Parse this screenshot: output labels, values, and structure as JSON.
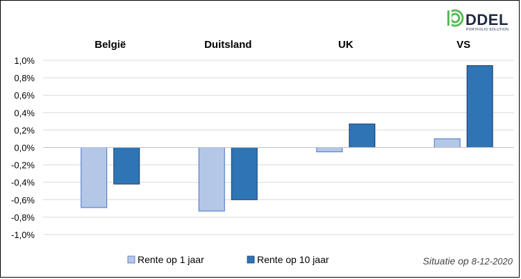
{
  "chart_data": {
    "type": "bar",
    "categories": [
      "België",
      "Duitsland",
      "UK",
      "VS"
    ],
    "series": [
      {
        "name": "Rente op 1 jaar",
        "color": "#b4c7e7",
        "values": [
          -0.0069,
          -0.0073,
          -0.0005,
          0.001
        ]
      },
      {
        "name": "Rente op 10 jaar",
        "color": "#2e75b6",
        "values": [
          -0.0042,
          -0.006,
          0.0027,
          0.0094
        ]
      }
    ],
    "ylim": [
      -0.01,
      0.01
    ],
    "yticks": [
      {
        "value": 0.01,
        "label": "1,0%"
      },
      {
        "value": 0.008,
        "label": "0,8%"
      },
      {
        "value": 0.006,
        "label": "0,6%"
      },
      {
        "value": 0.004,
        "label": "0,4%"
      },
      {
        "value": 0.002,
        "label": "0,2%"
      },
      {
        "value": 0.0,
        "label": "0,0%"
      },
      {
        "value": -0.002,
        "label": "-0,2%"
      },
      {
        "value": -0.004,
        "label": "-0,4%"
      },
      {
        "value": -0.006,
        "label": "-0,6%"
      },
      {
        "value": -0.008,
        "label": "-0,8%"
      },
      {
        "value": -0.01,
        "label": "-1,0%"
      }
    ],
    "grid": true,
    "legend_position": "bottom",
    "note_prefix": "Situatie op",
    "note_date": "8-12-2020"
  },
  "logo": {
    "name": "DDEL",
    "tagline": "PORTFOLIO SOLUTION",
    "accent_color": "#5cb85c"
  }
}
